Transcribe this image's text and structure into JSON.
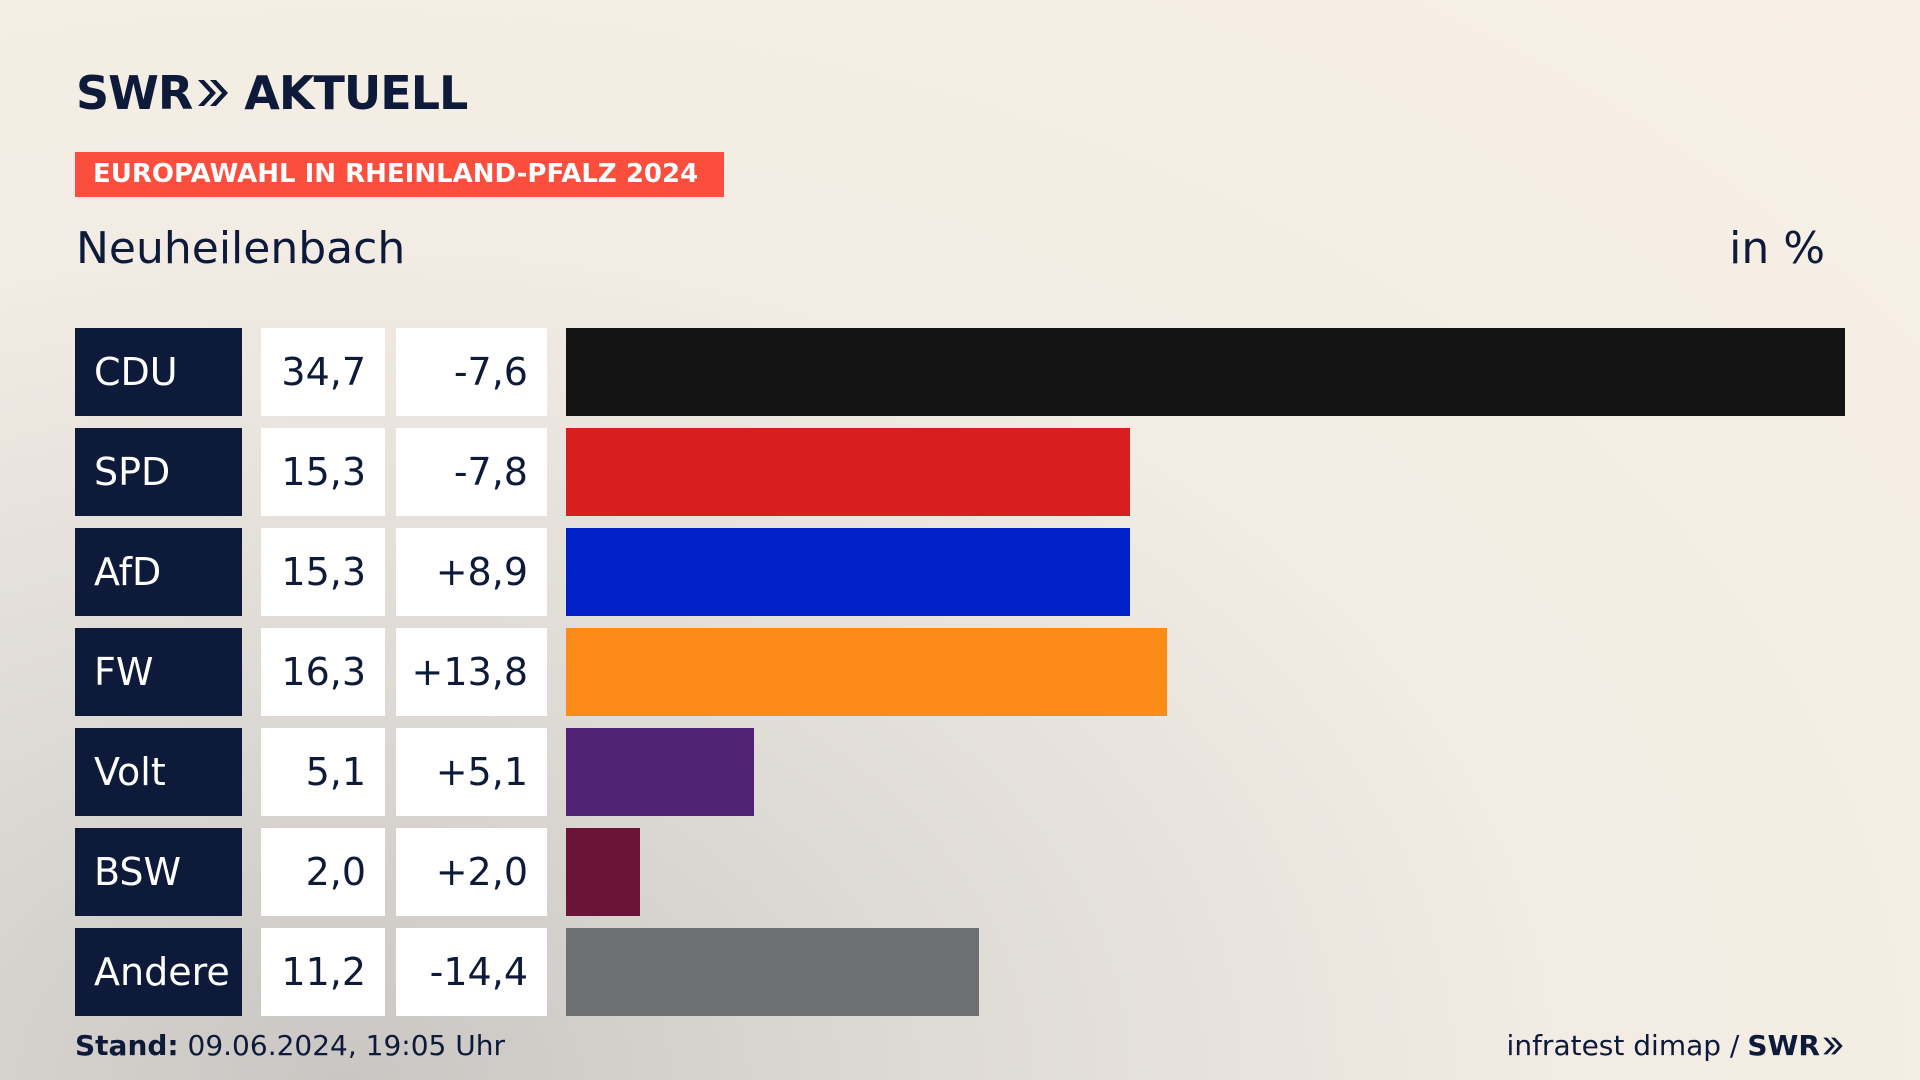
{
  "header": {
    "logo_left": "SWR",
    "logo_right": "AKTUELL",
    "banner": "EUROPAWAHL IN RHEINLAND-PFALZ 2024",
    "subtitle": "Neuheilenbach",
    "unit": "in %"
  },
  "colors": {
    "navy": "#0d1a3a",
    "banner": "#fb4e3d"
  },
  "chart_data": {
    "type": "bar",
    "orientation": "horizontal",
    "categories": [
      "CDU",
      "SPD",
      "AfD",
      "FW",
      "Volt",
      "BSW",
      "Andere"
    ],
    "values": [
      34.7,
      15.3,
      15.3,
      16.3,
      5.1,
      2.0,
      11.2
    ],
    "value_labels": [
      "34,7",
      "15,3",
      "15,3",
      "16,3",
      "5,1",
      "2,0",
      "11,2"
    ],
    "diff_values": [
      -7.6,
      -7.8,
      8.9,
      13.8,
      5.1,
      2.0,
      -14.4
    ],
    "diff_labels": [
      "-7,6",
      "-7,8",
      "+8,9",
      "+13,8",
      "+5,1",
      "+2,0",
      "-14,4"
    ],
    "bar_colors": [
      "#141414",
      "#d81f1f",
      "#0020c8",
      "#fd8b18",
      "#512174",
      "#6b1437",
      "#6e6f71"
    ],
    "xlim": [
      0,
      34.7
    ]
  },
  "footer": {
    "stand_label": "Stand:",
    "stand_value": "09.06.2024, 19:05 Uhr",
    "source": "infratest dimap /",
    "source_logo": "SWR"
  }
}
